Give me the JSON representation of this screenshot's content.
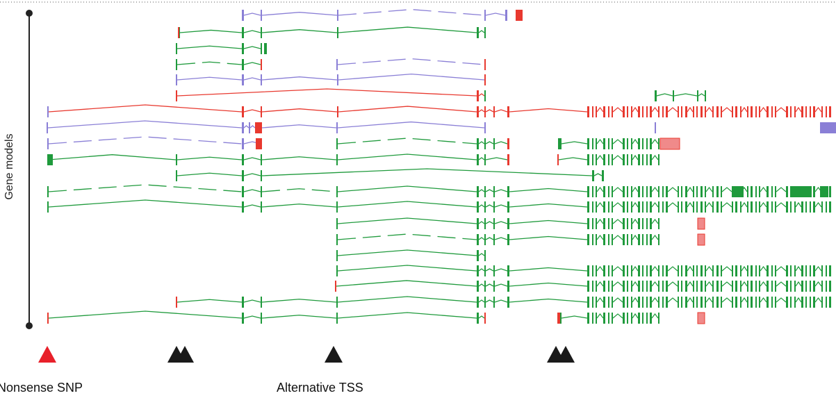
{
  "axis": {
    "label": "Gene models"
  },
  "annotations": {
    "nonsense_snp_label": "Nonsense SNP",
    "alternative_tss_label": "Alternative TSS"
  },
  "colors": {
    "green": "#1f9a3c",
    "purple": "#8a7fd6",
    "red": "#e8392f",
    "snp_marker": "#e8202a",
    "tss_marker": "#1a1a1a",
    "axis": "#222222",
    "dotted_border": "#555555"
  },
  "tracks": [
    {
      "color": "purple",
      "y": 22,
      "ex": [
        [
          348,
          351
        ],
        [
          375,
          377
        ],
        [
          485,
          487
        ],
        [
          697,
          699
        ],
        [
          727,
          730
        ]
      ],
      "term": [
        [
          742,
          752,
          "red"
        ]
      ],
      "dash": true
    },
    {
      "color": "green",
      "y": 47,
      "ex": [
        [
          256,
          259
        ],
        [
          348,
          351
        ],
        [
          375,
          377
        ],
        [
          485,
          487
        ],
        [
          686,
          689
        ],
        [
          697,
          699
        ]
      ],
      "term": [
        [
          256,
          258,
          "red"
        ]
      ]
    },
    {
      "color": "green",
      "y": 70,
      "ex": [
        [
          253,
          255
        ],
        [
          348,
          351
        ],
        [
          375,
          377
        ]
      ],
      "term": [
        [
          380,
          384,
          "green"
        ]
      ]
    },
    {
      "color": "green",
      "y": 93,
      "ex": [
        [
          253,
          255
        ],
        [
          348,
          351
        ],
        [
          375,
          377
        ]
      ],
      "term": [
        [
          375,
          377,
          "red"
        ]
      ],
      "dash": true
    },
    {
      "color": "purple",
      "y": 93,
      "ex": [
        [
          484,
          486
        ],
        [
          697,
          699
        ]
      ],
      "term": [
        [
          697,
          699,
          "red"
        ]
      ],
      "dash": true,
      "nostart": true
    },
    {
      "color": "purple",
      "y": 115,
      "ex": [
        [
          253,
          255
        ],
        [
          348,
          351
        ],
        [
          375,
          377
        ],
        [
          485,
          487
        ],
        [
          697,
          699
        ]
      ],
      "term": [
        [
          697,
          699,
          "red"
        ]
      ]
    },
    {
      "color": "red",
      "y": 138,
      "ex": [
        [
          253,
          255
        ],
        [
          686,
          689
        ],
        [
          697,
          699
        ]
      ],
      "term": [
        [
          697,
          699,
          "green"
        ]
      ]
    },
    {
      "color": "green",
      "y": 138,
      "ex": [
        [
          942,
          945
        ],
        [
          968,
          970
        ],
        [
          1003,
          1005
        ],
        [
          1014,
          1016
        ]
      ],
      "nostart": true
    },
    {
      "color": "red",
      "y": 161,
      "ex": [
        [
          68,
          70
        ],
        [
          348,
          351
        ],
        [
          375,
          377
        ],
        [
          485,
          487
        ],
        [
          686,
          689
        ],
        [
          697,
          699
        ],
        [
          710,
          712
        ],
        [
          730,
          733
        ]
      ],
      "dense": [
        845,
        1203
      ],
      "term": [
        [
          68,
          70,
          "purple"
        ]
      ]
    },
    {
      "color": "purple",
      "y": 184,
      "ex": [
        [
          67,
          69
        ],
        [
          348,
          351
        ],
        [
          358,
          360
        ],
        [
          367,
          369
        ],
        [
          375,
          377
        ],
        [
          484,
          486
        ],
        [
          697,
          699
        ]
      ],
      "term": [
        [
          367,
          377,
          "red"
        ]
      ]
    },
    {
      "color": "purple",
      "y": 184,
      "ex": [
        [
          942,
          944
        ]
      ],
      "term": [
        [
          1180,
          1203,
          "purple"
        ]
      ],
      "nostart": true
    },
    {
      "color": "purple",
      "y": 207,
      "ex": [
        [
          68,
          70
        ],
        [
          348,
          351
        ],
        [
          375,
          377
        ]
      ],
      "term": [
        [
          368,
          377,
          "red"
        ]
      ],
      "dash": true
    },
    {
      "color": "green",
      "y": 207,
      "ex": [
        [
          484,
          486
        ],
        [
          686,
          689
        ],
        [
          697,
          699
        ],
        [
          710,
          712
        ],
        [
          730,
          733
        ]
      ],
      "term": [
        [
          730,
          733,
          "red"
        ]
      ],
      "dash": true,
      "nostart": true
    },
    {
      "color": "green",
      "y": 207,
      "ex": [
        [
          803,
          808
        ]
      ],
      "dense": [
        845,
        950
      ],
      "term": [
        [
          950,
          978,
          "red-box"
        ]
      ],
      "nostart": true
    },
    {
      "color": "green",
      "y": 230,
      "ex": [
        [
          68,
          70
        ],
        [
          253,
          255
        ],
        [
          348,
          351
        ],
        [
          375,
          377
        ],
        [
          484,
          486
        ],
        [
          686,
          689
        ],
        [
          697,
          699
        ],
        [
          730,
          733
        ]
      ],
      "term": [
        [
          68,
          76,
          "green"
        ],
        [
          730,
          733,
          "red"
        ]
      ],
      "noline-to": 253
    },
    {
      "color": "green",
      "y": 230,
      "ex": [
        [
          802,
          804
        ]
      ],
      "dense": [
        845,
        950
      ],
      "term": [
        [
          802,
          804,
          "red"
        ]
      ],
      "nostart": true
    },
    {
      "color": "green",
      "y": 253,
      "ex": [
        [
          253,
          255
        ],
        [
          348,
          351
        ],
        [
          375,
          377
        ],
        [
          852,
          855
        ],
        [
          866,
          869
        ]
      ]
    },
    {
      "color": "green",
      "y": 276,
      "ex": [
        [
          1055,
          1070
        ],
        [
          1137,
          1168
        ],
        [
          1180,
          1192
        ]
      ],
      "nostart": true,
      "noline": true
    },
    {
      "color": "green",
      "y": 276,
      "ex": [
        [
          68,
          70
        ],
        [
          348,
          351
        ],
        [
          375,
          377
        ],
        [
          484,
          486
        ],
        [
          686,
          689
        ],
        [
          697,
          699
        ],
        [
          710,
          712
        ],
        [
          730,
          733
        ]
      ],
      "dense": [
        845,
        1203
      ],
      "dash": true
    },
    {
      "color": "green",
      "y": 298,
      "ex": [
        [
          68,
          70
        ],
        [
          348,
          351
        ],
        [
          375,
          377
        ],
        [
          484,
          486
        ],
        [
          686,
          689
        ],
        [
          697,
          699
        ],
        [
          710,
          712
        ],
        [
          730,
          733
        ]
      ],
      "dense": [
        845,
        1203
      ]
    },
    {
      "color": "green",
      "y": 322,
      "ex": [
        [
          484,
          486
        ],
        [
          686,
          689
        ],
        [
          697,
          699
        ],
        [
          710,
          712
        ],
        [
          730,
          733
        ]
      ],
      "dense": [
        845,
        950
      ],
      "term": [
        [
          1004,
          1014,
          "red-box"
        ]
      ]
    },
    {
      "color": "green",
      "y": 345,
      "ex": [
        [
          484,
          486
        ],
        [
          686,
          689
        ],
        [
          697,
          699
        ],
        [
          710,
          712
        ],
        [
          730,
          733
        ]
      ],
      "dense": [
        845,
        950
      ],
      "term": [
        [
          1004,
          1014,
          "red-box"
        ]
      ],
      "dash": true
    },
    {
      "color": "green",
      "y": 368,
      "ex": [
        [
          484,
          486
        ],
        [
          686,
          689
        ],
        [
          697,
          699
        ]
      ]
    },
    {
      "color": "green",
      "y": 390,
      "ex": [
        [
          484,
          486
        ],
        [
          686,
          689
        ],
        [
          697,
          699
        ],
        [
          710,
          712
        ],
        [
          730,
          733
        ]
      ],
      "dense": [
        845,
        1203
      ]
    },
    {
      "color": "green",
      "y": 412,
      "ex": [
        [
          482,
          484
        ],
        [
          686,
          689
        ],
        [
          697,
          699
        ],
        [
          710,
          712
        ],
        [
          730,
          733
        ]
      ],
      "dense": [
        845,
        1203
      ],
      "term": [
        [
          482,
          484,
          "red"
        ]
      ]
    },
    {
      "color": "green",
      "y": 435,
      "ex": [
        [
          253,
          255
        ],
        [
          348,
          351
        ],
        [
          375,
          377
        ],
        [
          484,
          486
        ],
        [
          686,
          689
        ],
        [
          697,
          699
        ],
        [
          710,
          712
        ],
        [
          730,
          733
        ]
      ],
      "dense": [
        845,
        1203
      ],
      "term": [
        [
          253,
          255,
          "red"
        ]
      ]
    },
    {
      "color": "green",
      "y": 458,
      "ex": [
        [
          68,
          70
        ],
        [
          348,
          351
        ],
        [
          375,
          377
        ],
        [
          484,
          486
        ],
        [
          686,
          689
        ],
        [
          697,
          699
        ]
      ],
      "term": [
        [
          68,
          70,
          "red"
        ],
        [
          697,
          699,
          "red"
        ]
      ]
    },
    {
      "color": "green",
      "y": 458,
      "ex": [
        [
          802,
          808
        ]
      ],
      "dense": [
        845,
        950
      ],
      "term": [
        [
          1004,
          1014,
          "red-box"
        ],
        [
          802,
          806,
          "red"
        ]
      ],
      "nostart": true
    }
  ],
  "markers": [
    {
      "type": "snp",
      "x": 68
    },
    {
      "type": "tss",
      "x": 254
    },
    {
      "type": "tss",
      "x": 266
    },
    {
      "type": "tss",
      "x": 480
    },
    {
      "type": "tss",
      "x": 800
    },
    {
      "type": "tss",
      "x": 814
    }
  ]
}
